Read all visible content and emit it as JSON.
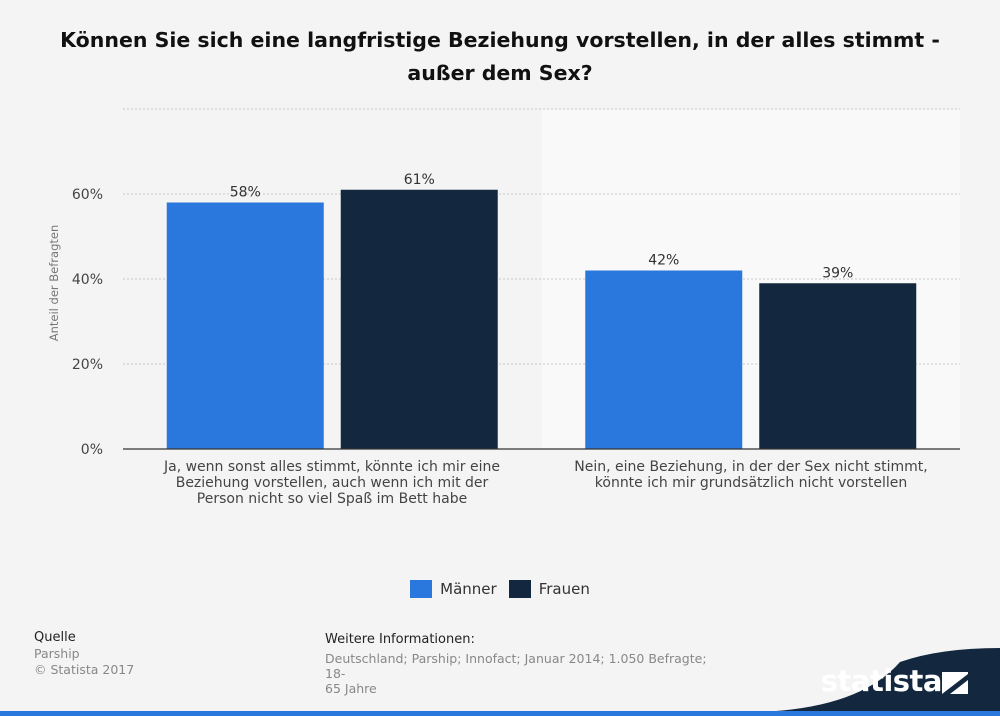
{
  "title": "Können Sie sich eine langfristige Beziehung vorstellen, in der alles stimmt - außer dem Sex?",
  "colors": {
    "maenner": "#2a77dd",
    "frauen": "#13283f",
    "grid": "#c8c8c8",
    "axis": "#333333"
  },
  "chart_data": {
    "type": "bar",
    "title": "Können Sie sich eine langfristige Beziehung vorstellen, in der alles stimmt - außer dem Sex?",
    "ylabel": "Anteil der Befragten",
    "xlabel": "",
    "ylim": [
      0,
      80
    ],
    "yticks": [
      0,
      20,
      40,
      60
    ],
    "ytick_labels": [
      "0%",
      "20%",
      "40%",
      "60%"
    ],
    "categories": [
      "Ja, wenn sonst alles stimmt, könnte ich mir eine Beziehung vorstellen, auch wenn ich mit der Person nicht so viel Spaß im Bett habe",
      "Nein, eine Beziehung, in der der Sex nicht stimmt, könnte ich mir grundsätzlich nicht vorstellen"
    ],
    "category_lines": [
      [
        "Ja, wenn sonst alles stimmt, könnte ich mir eine",
        "Beziehung vorstellen, auch wenn ich mit der",
        "Person nicht so viel Spaß im Bett habe"
      ],
      [
        "Nein, eine Beziehung, in der der Sex nicht stimmt,",
        "könnte ich mir grundsätzlich nicht vorstellen"
      ]
    ],
    "series": [
      {
        "name": "Männer",
        "values": [
          58,
          42
        ],
        "labels": [
          "58%",
          "42%"
        ]
      },
      {
        "name": "Frauen",
        "values": [
          61,
          39
        ],
        "labels": [
          "61%",
          "39%"
        ]
      }
    ],
    "legend": "bottom-center",
    "grid": true
  },
  "legend": {
    "maenner": "Männer",
    "frauen": "Frauen"
  },
  "source": {
    "heading": "Quelle",
    "name": "Parship",
    "copyright": "© Statista 2017"
  },
  "info": {
    "heading": "Weitere Informationen:",
    "line1": "Deutschland; Parship; Innofact; Januar 2014; 1.050 Befragte; 18-",
    "line2": "65 Jahre"
  },
  "brand": {
    "name": "statista"
  }
}
